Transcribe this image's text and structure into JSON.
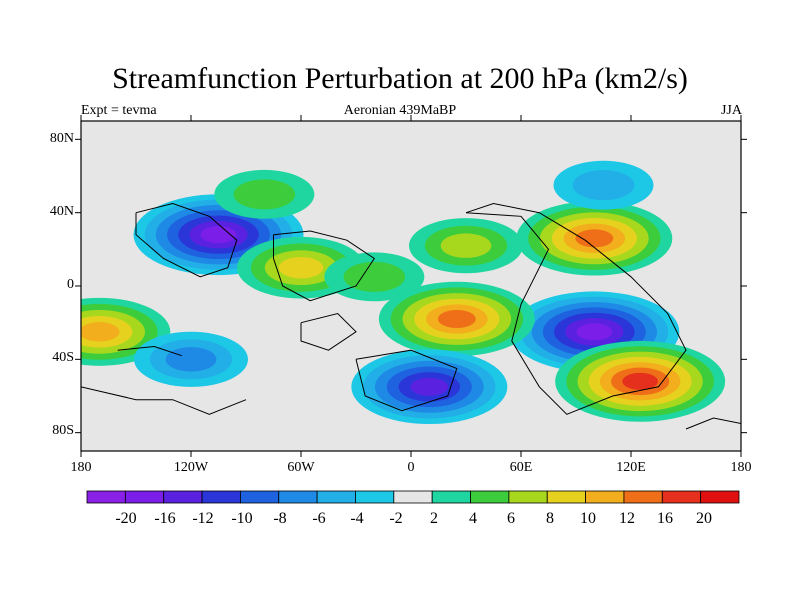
{
  "chart_data": {
    "type": "heatmap",
    "title": "Streamfunction Perturbation at 200 hPa (km2/s)",
    "subtitle_left": "Expt = tevma",
    "subtitle_center": "Aeronian 439MaBP",
    "subtitle_right": "JJA",
    "x_range": [
      -180,
      180
    ],
    "y_range": [
      -90,
      90
    ],
    "x_ticks": [
      "180",
      "120W",
      "60W",
      "0",
      "60E",
      "120E",
      "180"
    ],
    "y_ticks": [
      "80N",
      "40N",
      "0",
      "40S",
      "80S"
    ],
    "colorbar": {
      "labels": [
        "-20",
        "-16",
        "-12",
        "-10",
        "-8",
        "-6",
        "-4",
        "-2",
        "2",
        "4",
        "6",
        "8",
        "10",
        "12",
        "16",
        "20"
      ],
      "colors": [
        "#8a1fe6",
        "#7a1ee8",
        "#5a22e0",
        "#2a36d8",
        "#1f62e0",
        "#1f8ae6",
        "#22aee6",
        "#1cc8e6",
        "#e6e6e6",
        "#1fd6a0",
        "#3ccc3c",
        "#a8d81e",
        "#e6d21e",
        "#f2ae1c",
        "#ef6f18",
        "#e4301c",
        "#e01010"
      ]
    },
    "features": [
      {
        "lon": -105,
        "lat": 28,
        "value": -18
      },
      {
        "lon": 100,
        "lat": 26,
        "value": 14
      },
      {
        "lon": 100,
        "lat": -25,
        "value": -18
      },
      {
        "lon": 125,
        "lat": -52,
        "value": 16
      },
      {
        "lon": 25,
        "lat": -18,
        "value": 12
      },
      {
        "lon": 10,
        "lat": -55,
        "value": -16
      },
      {
        "lon": -60,
        "lat": 10,
        "value": 8
      },
      {
        "lon": -170,
        "lat": -25,
        "value": 10
      },
      {
        "lon": -120,
        "lat": -40,
        "value": -8
      },
      {
        "lon": 30,
        "lat": 22,
        "value": 6
      },
      {
        "lon": -20,
        "lat": 5,
        "value": 4
      },
      {
        "lon": 105,
        "lat": 55,
        "value": -5
      },
      {
        "lon": -80,
        "lat": 50,
        "value": 5
      }
    ]
  }
}
